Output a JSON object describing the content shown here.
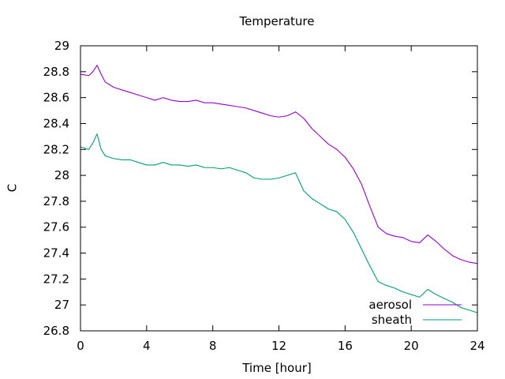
{
  "chart_data": {
    "type": "line",
    "title": "Temperature",
    "xlabel": "Time [hour]",
    "ylabel": "C",
    "xlim": [
      0,
      24
    ],
    "ylim": [
      26.8,
      29
    ],
    "x_ticks": [
      0,
      4,
      8,
      12,
      16,
      20,
      24
    ],
    "y_ticks": [
      26.8,
      27,
      27.2,
      27.4,
      27.6,
      27.8,
      28,
      28.2,
      28.4,
      28.6,
      28.8,
      29
    ],
    "grid": false,
    "legend_position": "bottom-right",
    "series": [
      {
        "name": "aerosol",
        "color": "#9400d3",
        "x": [
          0,
          0.5,
          0.75,
          1.0,
          1.25,
          1.5,
          2,
          2.5,
          3,
          3.5,
          4,
          4.5,
          5,
          5.5,
          6,
          6.5,
          7,
          7.5,
          8,
          8.5,
          9,
          9.5,
          10,
          10.5,
          11,
          11.5,
          12,
          12.5,
          13,
          13.5,
          14,
          14.5,
          15,
          15.5,
          16,
          16.5,
          17,
          17.5,
          18,
          18.5,
          19,
          19.5,
          20,
          20.5,
          21,
          21.5,
          22,
          22.5,
          23,
          23.5,
          24
        ],
        "y": [
          28.78,
          28.77,
          28.8,
          28.85,
          28.78,
          28.72,
          28.68,
          28.66,
          28.64,
          28.62,
          28.6,
          28.58,
          28.6,
          28.58,
          28.57,
          28.57,
          28.58,
          28.56,
          28.56,
          28.55,
          28.54,
          28.53,
          28.52,
          28.5,
          28.48,
          28.46,
          28.45,
          28.46,
          28.49,
          28.44,
          28.36,
          28.3,
          28.24,
          28.2,
          28.14,
          28.05,
          27.93,
          27.76,
          27.6,
          27.55,
          27.53,
          27.52,
          27.49,
          27.48,
          27.54,
          27.49,
          27.43,
          27.38,
          27.35,
          27.33,
          27.32
        ]
      },
      {
        "name": "sheath",
        "color": "#009e73",
        "x": [
          0,
          0.5,
          0.75,
          1.0,
          1.25,
          1.5,
          2,
          2.5,
          3,
          3.5,
          4,
          4.5,
          5,
          5.5,
          6,
          6.5,
          7,
          7.5,
          8,
          8.5,
          9,
          9.5,
          10,
          10.5,
          11,
          11.5,
          12,
          12.5,
          13,
          13.5,
          14,
          14.5,
          15,
          15.5,
          16,
          16.5,
          17,
          17.5,
          18,
          18.5,
          19,
          19.5,
          20,
          20.5,
          21,
          21.5,
          22,
          22.5,
          23,
          23.5,
          24
        ],
        "y": [
          28.22,
          28.2,
          28.25,
          28.32,
          28.2,
          28.15,
          28.13,
          28.12,
          28.12,
          28.1,
          28.08,
          28.08,
          28.1,
          28.08,
          28.08,
          28.07,
          28.08,
          28.06,
          28.06,
          28.05,
          28.06,
          28.04,
          28.02,
          27.98,
          27.97,
          27.97,
          27.98,
          28.0,
          28.02,
          27.88,
          27.82,
          27.78,
          27.74,
          27.72,
          27.66,
          27.56,
          27.43,
          27.3,
          27.18,
          27.15,
          27.13,
          27.1,
          27.08,
          27.06,
          27.12,
          27.08,
          27.05,
          27.02,
          26.98,
          26.96,
          26.94
        ]
      }
    ]
  }
}
